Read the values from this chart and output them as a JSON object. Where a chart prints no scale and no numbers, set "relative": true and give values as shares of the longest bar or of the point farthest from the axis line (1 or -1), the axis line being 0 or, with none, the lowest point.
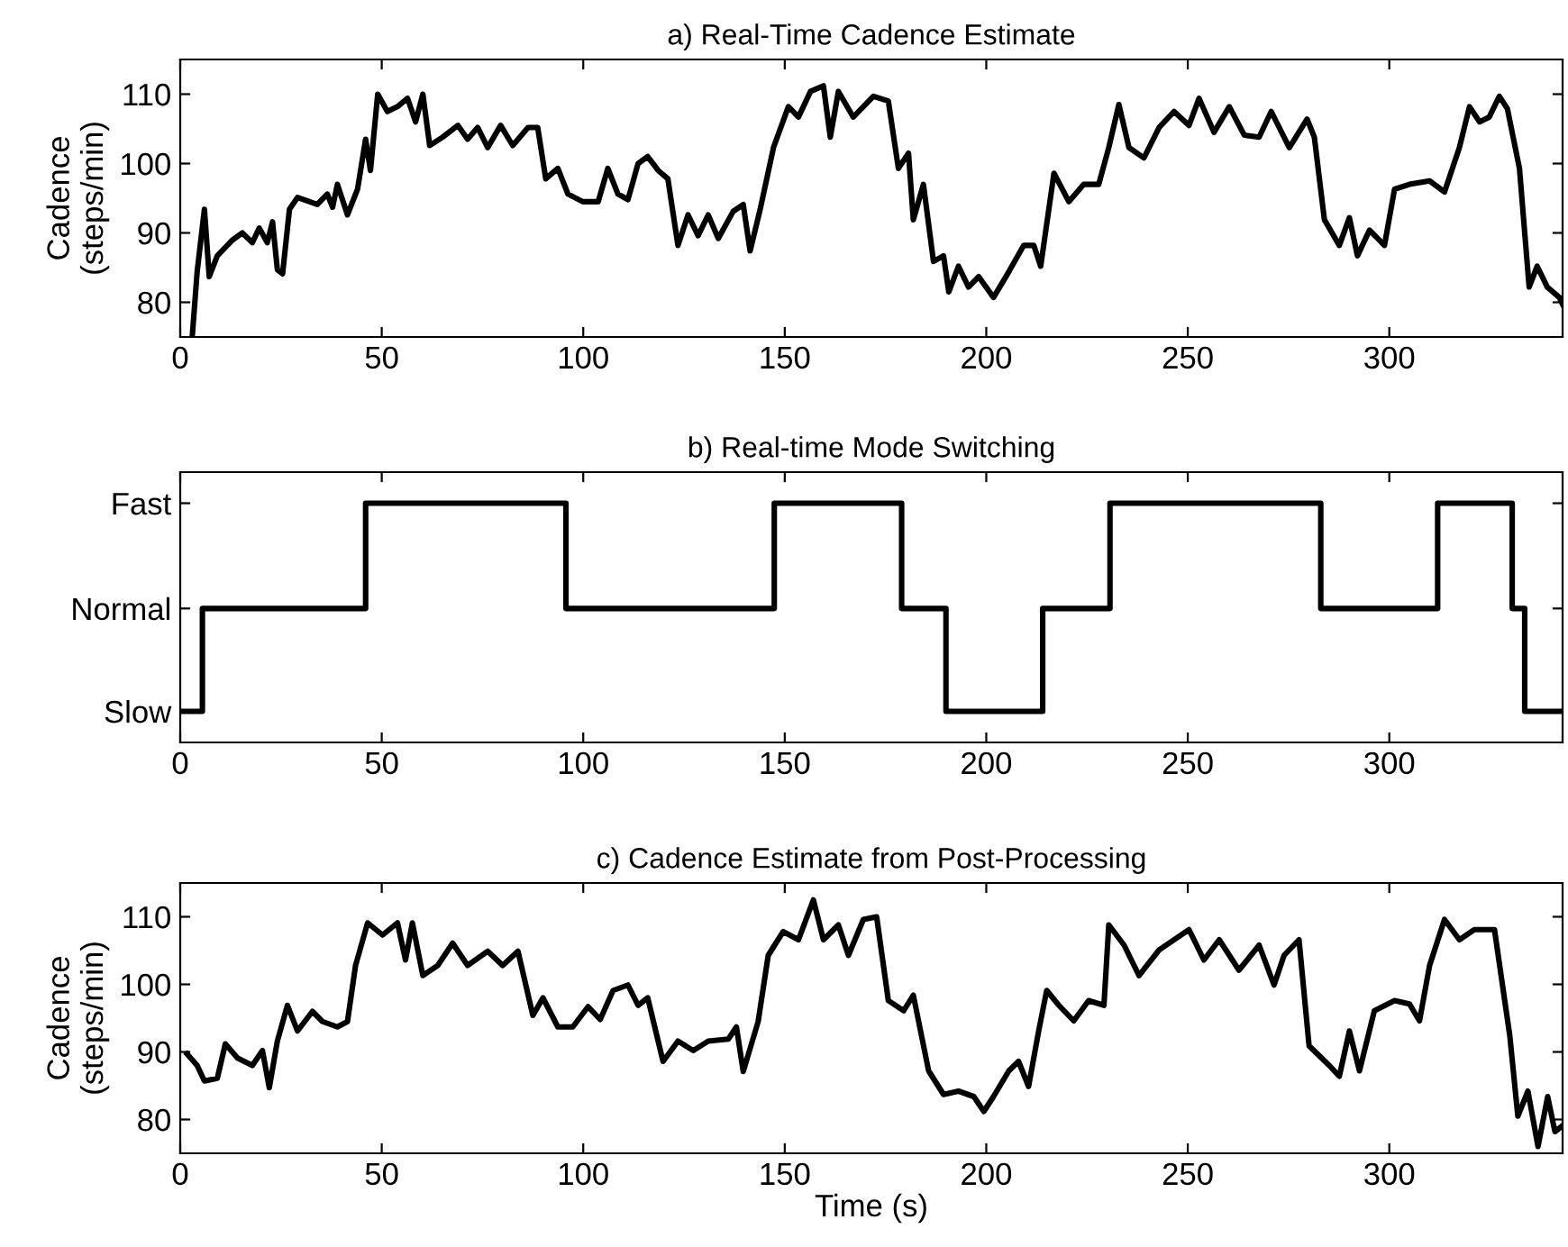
{
  "chart_data": [
    {
      "type": "line",
      "title": "a) Real-Time Cadence Estimate",
      "ylabel": "Cadence\n(steps/min)",
      "xlim": [
        0,
        343
      ],
      "xticks": [
        0,
        50,
        100,
        150,
        200,
        250,
        300
      ],
      "ylim": [
        75,
        115
      ],
      "yticks": [
        80,
        90,
        100,
        110
      ],
      "grid": false,
      "legend": false,
      "marker": "none",
      "line_style": "solid",
      "series": [
        {
          "color": "#000000",
          "x": [
            3,
            4.2,
            6,
            7.2,
            9.2,
            13,
            15.4,
            17.9,
            19.6,
            21.6,
            22.9,
            24.1,
            25.4,
            27.1,
            29.1,
            34,
            36.5,
            37.8,
            39,
            41.5,
            44,
            46,
            47.2,
            49,
            51.4,
            53.9,
            56.4,
            58.4,
            60.2,
            61.9,
            65.1,
            68.9,
            71.3,
            73.8,
            76.3,
            79.5,
            82.5,
            86.3,
            88.7,
            90.7,
            93.7,
            96.2,
            99.9,
            103.7,
            106.1,
            108.6,
            111.1,
            113.6,
            116,
            118.6,
            121,
            123.5,
            126,
            128.5,
            131,
            133.5,
            137.2,
            139.7,
            141.4,
            143.9,
            147.2,
            150.9,
            153.4,
            156.4,
            159.6,
            161.3,
            163.3,
            167,
            172,
            175.7,
            178.2,
            180.7,
            181.9,
            184.4,
            186.9,
            189.4,
            190.7,
            193.1,
            195.6,
            198.1,
            201.8,
            205.6,
            209.3,
            211.8,
            213.5,
            216.8,
            220.5,
            224.2,
            227.9,
            230.4,
            232.9,
            235.4,
            239.1,
            242.9,
            246.6,
            250.3,
            252.8,
            256.5,
            260.3,
            264,
            267.7,
            270.7,
            275.2,
            279.6,
            281.4,
            283.9,
            287.6,
            290.1,
            292.1,
            295.1,
            298.8,
            301.3,
            305,
            310,
            313.7,
            317.4,
            319.9,
            322.4,
            324.8,
            327.3,
            329.3,
            332.3,
            334.7,
            336.7,
            339.2,
            342.2,
            343
          ],
          "values": [
            75.2,
            84.4,
            93.4,
            83.7,
            86.7,
            89,
            90,
            88.6,
            90.7,
            88.6,
            91.6,
            84.7,
            84.1,
            93.4,
            95.1,
            94.1,
            95.6,
            93.7,
            97,
            92.6,
            96.3,
            103.5,
            99,
            110,
            107.5,
            108.2,
            109.4,
            106,
            110,
            102.6,
            103.8,
            105.5,
            103.5,
            105.2,
            102.3,
            105.5,
            102.6,
            105.2,
            105.2,
            97.8,
            99.3,
            95.6,
            94.5,
            94.5,
            99.3,
            95.6,
            94.8,
            100,
            101,
            99,
            97.8,
            88.2,
            92.6,
            89.6,
            92.6,
            89.2,
            93.1,
            94.1,
            87.4,
            93.4,
            102.3,
            108.2,
            106.7,
            110.4,
            111.2,
            103.8,
            110.4,
            106.7,
            109.7,
            109,
            99.3,
            101.5,
            91.9,
            97,
            85.9,
            86.7,
            81.5,
            85.2,
            82.2,
            83.7,
            80.7,
            84.4,
            88.2,
            88.2,
            85.2,
            98.6,
            94.5,
            97,
            97,
            102.3,
            108.5,
            102.3,
            100.8,
            105.2,
            107.5,
            105.5,
            109.4,
            104.5,
            108.2,
            104.1,
            103.8,
            107.5,
            102.3,
            106.4,
            103.8,
            91.9,
            88.2,
            92.2,
            86.7,
            90.4,
            88.2,
            96.3,
            97,
            97.5,
            95.9,
            102.3,
            108.2,
            106,
            106.7,
            109.7,
            107.9,
            99.3,
            82.2,
            85.2,
            82.2,
            80.7,
            79.7
          ]
        }
      ]
    },
    {
      "type": "step",
      "title": "b) Real-time Mode Switching",
      "xlim": [
        0,
        343
      ],
      "xticks": [
        0,
        50,
        100,
        150,
        200,
        250,
        300
      ],
      "relative": true,
      "annotations": [
        "Slow",
        "Normal",
        "Fast"
      ],
      "grid": false,
      "legend": false,
      "marker": "none",
      "line_style": "solid",
      "series": [
        {
          "color": "#000000",
          "x": [
            0,
            5.5,
            46,
            95.7,
            147.4,
            179,
            190,
            214,
            230.7,
            283,
            312,
            330.5,
            333.6,
            343
          ],
          "values": [
            0.13,
            0.56,
            1,
            0.56,
            1,
            0.56,
            0.13,
            0.56,
            1,
            0.56,
            1,
            0.56,
            0.13,
            0.13
          ]
        }
      ]
    },
    {
      "type": "line",
      "title": "c) Cadence Estimate from Post-Processing",
      "xlabel": "Time (s)",
      "ylabel": "Cadence\n(steps/min)",
      "xlim": [
        0,
        343
      ],
      "xticks": [
        0,
        50,
        100,
        150,
        200,
        250,
        300
      ],
      "ylim": [
        75,
        115
      ],
      "yticks": [
        80,
        90,
        100,
        110
      ],
      "grid": false,
      "legend": false,
      "marker": "none",
      "line_style": "solid",
      "series": [
        {
          "color": "#000000",
          "x": [
            1.7,
            4.2,
            6,
            9.2,
            11.2,
            14.2,
            17.9,
            20.4,
            22.1,
            24.1,
            26.6,
            29.1,
            32.8,
            35.3,
            39,
            41.5,
            43.5,
            46.5,
            50.2,
            53.9,
            55.9,
            57.6,
            60.2,
            63.9,
            67.6,
            71.3,
            76.3,
            80,
            83.8,
            87.5,
            90,
            93.7,
            97.4,
            101.2,
            104.2,
            107.4,
            111.1,
            113.6,
            116,
            119.8,
            123.5,
            127.3,
            131,
            136,
            138,
            139.7,
            143.4,
            145.9,
            149.6,
            153.4,
            157.1,
            159.6,
            163.3,
            165.8,
            169.5,
            172.8,
            175.7,
            179.5,
            181.9,
            185.7,
            189.4,
            193.1,
            196.9,
            199.4,
            201.8,
            205.6,
            208,
            210.5,
            213,
            215,
            218,
            221.7,
            225.4,
            229.2,
            230.4,
            234.2,
            237.9,
            242.9,
            246.6,
            250.3,
            254,
            257.8,
            262.7,
            267.7,
            271.4,
            273.9,
            277.6,
            280.1,
            285.1,
            287.6,
            290.1,
            292.6,
            296.3,
            301.3,
            305,
            307.5,
            310,
            313.7,
            317.4,
            321.1,
            326.1,
            329.9,
            331.9,
            334.4,
            336.9,
            339.3,
            341.1,
            342.8
          ],
          "values": [
            89.7,
            88,
            85.7,
            86.1,
            91.2,
            89.1,
            88,
            90.2,
            84.7,
            91.6,
            96.9,
            93.1,
            96,
            94.5,
            93.7,
            94.5,
            102.8,
            109.1,
            107.3,
            109.1,
            103.6,
            109.1,
            101.3,
            102.8,
            106.1,
            102.8,
            104.9,
            102.8,
            104.9,
            95.4,
            98,
            93.7,
            93.7,
            96.7,
            94.8,
            99.1,
            99.9,
            96.9,
            98,
            88.6,
            91.6,
            90.2,
            91.6,
            91.9,
            93.7,
            87.1,
            94.5,
            104.3,
            107.8,
            106.6,
            112.5,
            106.6,
            108.8,
            104.3,
            109.6,
            110,
            97.6,
            96.1,
            98.4,
            87.2,
            83.7,
            84.2,
            83.4,
            81.2,
            83.4,
            87.2,
            88.6,
            84.9,
            93.1,
            99.1,
            96.9,
            94.6,
            97.6,
            96.9,
            108.8,
            105.8,
            101.3,
            105.1,
            106.6,
            108.1,
            103.6,
            106.6,
            102.1,
            105.8,
            99.9,
            104.3,
            106.6,
            90.9,
            88,
            86.4,
            93.1,
            87.2,
            96.1,
            97.6,
            97.1,
            94.6,
            102.8,
            109.6,
            106.6,
            108.1,
            108.1,
            92.4,
            80.5,
            84.2,
            76,
            83.4,
            78.2,
            79
          ]
        }
      ]
    }
  ]
}
